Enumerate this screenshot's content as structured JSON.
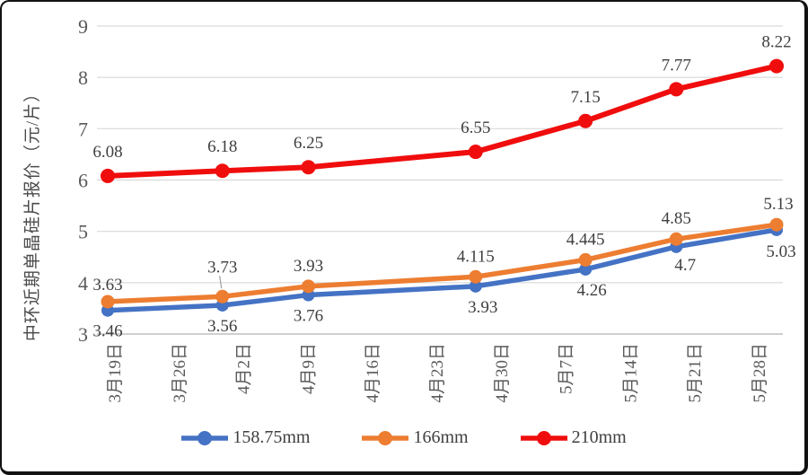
{
  "chart_data": {
    "type": "line",
    "title": "",
    "ylabel": "中环近期单晶硅片报价（元/片）",
    "xlabel": "",
    "ylim": [
      3,
      9
    ],
    "y_ticks": [
      3,
      4,
      5,
      6,
      7,
      8,
      9
    ],
    "x_tick_labels": [
      "3月19日",
      "3月26日",
      "4月2日",
      "4月9日",
      "4月16日",
      "4月23日",
      "4月30日",
      "5月7日",
      "5月14日",
      "5月21日",
      "5月28日"
    ],
    "x_tick_days": [
      0,
      7,
      14,
      21,
      28,
      35,
      42,
      49,
      56,
      63,
      70
    ],
    "x_point_days": [
      0,
      12,
      21,
      38.5,
      50,
      59.5,
      70
    ],
    "grid": "horizontal",
    "legend_position": "bottom",
    "colors": {
      "blue": "#4472c4",
      "orange": "#ed7d31",
      "red": "#f00d0d",
      "gridline": "#d9d9d9",
      "axis_line": "#bfbfbf",
      "tick_text": "#595959",
      "label_text": "#3f3f3f"
    },
    "series": [
      {
        "name": "158.75mm",
        "color": "#4472c4",
        "values": [
          3.46,
          3.56,
          3.76,
          3.93,
          4.26,
          4.7,
          5.03
        ],
        "labels": [
          "3.46",
          "3.56",
          "3.76",
          "3.93",
          "4.26",
          "4.7",
          "5.03"
        ],
        "label_position": "below"
      },
      {
        "name": "166mm",
        "color": "#ed7d31",
        "values": [
          3.63,
          3.73,
          3.93,
          4.115,
          4.445,
          4.85,
          5.13
        ],
        "labels": [
          "3.63",
          "3.73",
          "3.93",
          "4.115",
          "4.445",
          "4.85",
          "5.13"
        ],
        "label_position": "above"
      },
      {
        "name": "210mm",
        "color": "#f00d0d",
        "values": [
          6.08,
          6.18,
          6.25,
          6.55,
          7.15,
          7.77,
          8.22
        ],
        "labels": [
          "6.08",
          "6.18",
          "6.25",
          "6.55",
          "7.15",
          "7.77",
          "8.22"
        ],
        "label_position": "above"
      }
    ]
  }
}
